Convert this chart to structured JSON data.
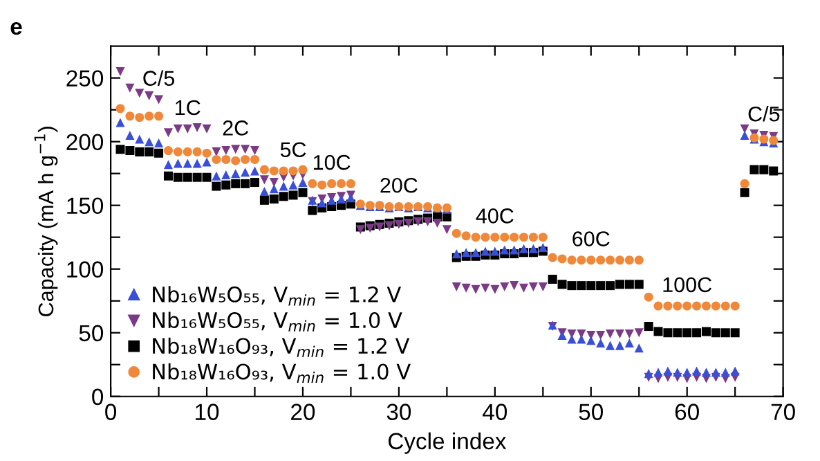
{
  "chart_data": {
    "type": "scatter",
    "title": "e",
    "xlabel": "Cycle index",
    "ylabel": "Capacity (mA h g$^{−1}$)",
    "x": [
      1,
      2,
      3,
      4,
      5,
      6,
      7,
      8,
      9,
      10,
      11,
      12,
      13,
      14,
      15,
      16,
      17,
      18,
      19,
      20,
      21,
      22,
      23,
      24,
      25,
      26,
      27,
      28,
      29,
      30,
      31,
      32,
      33,
      34,
      35,
      36,
      37,
      38,
      39,
      40,
      41,
      42,
      43,
      44,
      45,
      46,
      47,
      48,
      49,
      50,
      51,
      52,
      53,
      54,
      55,
      56,
      57,
      58,
      59,
      60,
      61,
      62,
      63,
      64,
      65,
      66,
      67,
      68,
      69
    ],
    "xlim": [
      0,
      70
    ],
    "xticks": [
      0,
      {
        "value": 5,
        "label": null
      },
      10,
      {
        "value": 15,
        "label": null
      },
      20,
      {
        "value": 25,
        "label": null
      },
      30,
      {
        "value": 35,
        "label": null
      },
      40,
      {
        "value": 45,
        "label": null
      },
      50,
      {
        "value": 55,
        "label": null
      },
      60,
      {
        "value": 65,
        "label": null
      },
      70
    ],
    "ylim": [
      0,
      275
    ],
    "yticks": [
      0,
      {
        "value": 25,
        "label": null
      },
      50,
      {
        "value": 75,
        "label": null
      },
      100,
      {
        "value": 125,
        "label": null
      },
      150,
      {
        "value": 175,
        "label": null
      },
      200,
      {
        "value": 225,
        "label": null
      },
      250
    ],
    "grid": false,
    "legend": "bottom left",
    "series": [
      {
        "name": "Nb₁₆W₅O₅₅, V$_{min}$ = 1.2 V",
        "color": "#3a4fd8",
        "marker": "triangle",
        "values": [
          215,
          205,
          202,
          200,
          199,
          182,
          183,
          183,
          183,
          184,
          173,
          174,
          175,
          176,
          177,
          161,
          163,
          165,
          166,
          168,
          154,
          152,
          154,
          155,
          156,
          150,
          149,
          149,
          148,
          149,
          148,
          149,
          148,
          148,
          147,
          112,
          113,
          113,
          114,
          114,
          115,
          115,
          116,
          116,
          117,
          56,
          48,
          45,
          45,
          44,
          42,
          40,
          40,
          42,
          38,
          18,
          19,
          20,
          19,
          19,
          20,
          19,
          19,
          19,
          20,
          205,
          202,
          200,
          199
        ]
      },
      {
        "name": "Nb₁₆W₅O₅₅, V$_{min}$ = 1.0 V",
        "color": "#7b3a86",
        "marker": "triangle_down",
        "values": [
          255,
          242,
          238,
          236,
          233,
          207,
          210,
          210,
          211,
          210,
          192,
          193,
          194,
          194,
          193,
          170,
          168,
          172,
          173,
          174,
          153,
          155,
          156,
          157,
          158,
          131,
          132,
          133,
          134,
          135,
          136,
          137,
          137,
          136,
          131,
          86,
          85,
          84,
          85,
          84,
          86,
          87,
          85,
          86,
          86,
          55,
          50,
          49,
          49,
          48,
          48,
          49,
          49,
          49,
          50,
          15,
          14,
          15,
          15,
          14,
          15,
          14,
          15,
          14,
          15,
          210,
          206,
          205,
          204
        ]
      },
      {
        "name": "Nb₁₈W₁₆O₉₃, V$_{min}$ = 1.2 V",
        "color": "#000000",
        "marker": "square",
        "values": [
          194,
          193,
          192,
          192,
          191,
          173,
          172,
          172,
          172,
          172,
          165,
          166,
          167,
          167,
          168,
          154,
          155,
          157,
          158,
          160,
          146,
          148,
          149,
          150,
          151,
          133,
          134,
          135,
          136,
          137,
          138,
          139,
          140,
          141,
          141,
          109,
          110,
          110,
          111,
          111,
          112,
          112,
          113,
          113,
          114,
          92,
          88,
          87,
          87,
          87,
          87,
          87,
          88,
          88,
          88,
          55,
          51,
          50,
          50,
          50,
          50,
          51,
          50,
          50,
          50,
          160,
          178,
          178,
          177
        ]
      },
      {
        "name": "Nb₁₈W₁₆O₉₃, V$_{min}$ = 1.0 V",
        "color": "#f0883a",
        "marker": "circle",
        "values": [
          226,
          220,
          219,
          220,
          220,
          193,
          192,
          192,
          192,
          191,
          186,
          186,
          185,
          186,
          186,
          178,
          177,
          177,
          177,
          178,
          167,
          166,
          167,
          167,
          167,
          151,
          150,
          150,
          149,
          149,
          149,
          149,
          149,
          148,
          148,
          128,
          126,
          125,
          125,
          125,
          125,
          125,
          125,
          125,
          125,
          109,
          108,
          107,
          107,
          107,
          107,
          107,
          107,
          107,
          107,
          78,
          71,
          71,
          71,
          71,
          71,
          71,
          71,
          71,
          71,
          167,
          203,
          202,
          201
        ]
      }
    ],
    "annotations": [
      {
        "text": "C/5",
        "x": 5,
        "y": 233
      },
      {
        "text": "1C",
        "x": 8,
        "y": 210
      },
      {
        "text": "2C",
        "x": 13,
        "y": 194
      },
      {
        "text": "5C",
        "x": 19,
        "y": 177
      },
      {
        "text": "10C",
        "x": 23,
        "y": 167
      },
      {
        "text": "20C",
        "x": 30,
        "y": 149
      },
      {
        "text": "40C",
        "x": 40,
        "y": 125
      },
      {
        "text": "60C",
        "x": 50,
        "y": 107
      },
      {
        "text": "100C",
        "x": 60,
        "y": 71
      },
      {
        "text": "C/5",
        "x": 68,
        "y": 205
      }
    ]
  }
}
